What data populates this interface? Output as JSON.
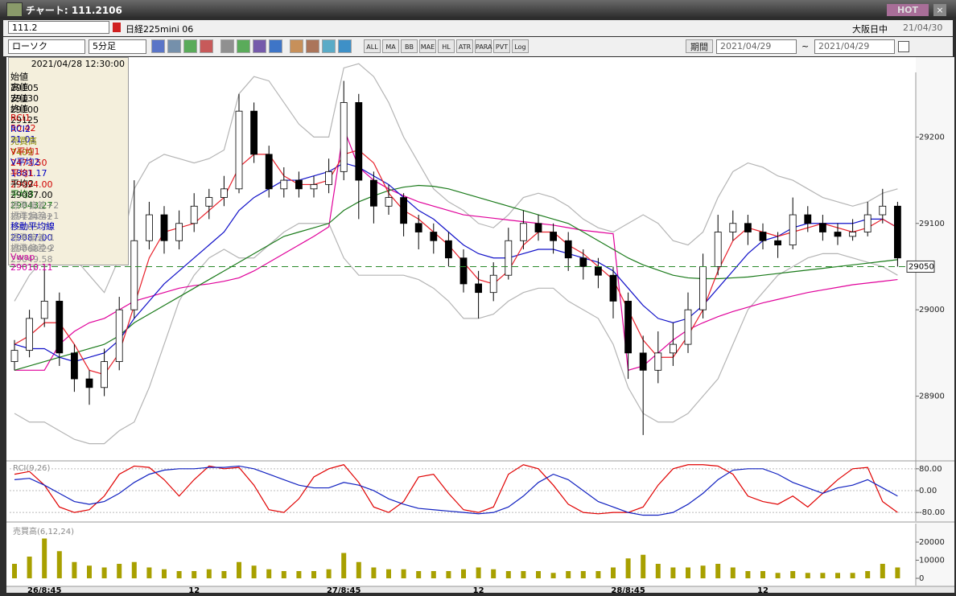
{
  "window": {
    "title": "チャート: 111.2106",
    "hot": "HOT"
  },
  "header": {
    "symbol_code": "111.2",
    "symbol_name": "日経225mini 06",
    "session": "大阪日中",
    "date": "21/04/30"
  },
  "toolbar": {
    "chart_type": "ローソク",
    "interval": "5分足",
    "buttons": [
      "ALL",
      "MA",
      "BB",
      "MAE",
      "HL",
      "ATR",
      "PARA",
      "PVT",
      "Log"
    ],
    "period_label": "期間",
    "from": "2021/04/29",
    "tilde": "~",
    "to": "2021/04/29"
  },
  "info_panel": {
    "datetime": "2021/04/28 12:30:00",
    "rows": [
      {
        "label": "始値",
        "value": "29105",
        "color": "#000000"
      },
      {
        "label": "高値",
        "value": "29130",
        "color": "#000000"
      },
      {
        "label": "安値",
        "value": "29100",
        "color": "#000000"
      },
      {
        "label": "終値",
        "value": "29125",
        "color": "#000000"
      },
      {
        "label": "RCI1",
        "value": "50.42",
        "color": "#d00000"
      },
      {
        "label": "RCI2",
        "value": "21.01",
        "color": "#0000c0"
      },
      {
        "label": "売買高",
        "value": "7409",
        "color": "#8a8a00"
      },
      {
        "label": "V平均1",
        "value": "2473.50",
        "color": "#d00000"
      },
      {
        "label": "V平均2",
        "value": "1881.17",
        "color": "#0000c0"
      },
      {
        "label": "平均1",
        "value": "29094.00",
        "color": "#d00000"
      },
      {
        "label": "平均2",
        "value": "29087.00",
        "color": "#000000"
      },
      {
        "label": "平均3",
        "value": "29043.27",
        "color": "#107010"
      },
      {
        "label": "標準偏差+2",
        "value": "29124.42",
        "color": "#909090"
      },
      {
        "label": "標準偏差+1",
        "value": "29105.71",
        "color": "#909090"
      },
      {
        "label": "移動平均線",
        "value": "29087.00",
        "color": "#0000c0"
      },
      {
        "label": "標準偏差-1",
        "value": "29068.29",
        "color": "#909090"
      },
      {
        "label": "標準偏差-2",
        "value": "29049.58",
        "color": "#909090"
      },
      {
        "label": "Vwap",
        "value": "29010.11",
        "color": "#d000a0"
      }
    ]
  },
  "chart_data": [
    {
      "type": "candlestick",
      "up_color": "#ffffff",
      "down_color": "#000000",
      "categories": [
        null,
        null,
        "26/8:45",
        null,
        null,
        null,
        null,
        null,
        null,
        null,
        null,
        null,
        "12",
        null,
        null,
        null,
        null,
        null,
        null,
        null,
        null,
        null,
        "27/8:45",
        null,
        null,
        null,
        null,
        null,
        null,
        null,
        null,
        "12",
        null,
        null,
        null,
        null,
        null,
        null,
        null,
        null,
        null,
        "28/8:45",
        null,
        null,
        null,
        null,
        null,
        null,
        null,
        null,
        "12",
        null,
        null,
        null,
        null,
        null,
        null,
        null,
        null,
        null
      ],
      "ohlc": [
        [
          28940,
          28965,
          28930,
          28953
        ],
        [
          28953,
          29000,
          28945,
          28990
        ],
        [
          28990,
          29060,
          28980,
          29010
        ],
        [
          29010,
          29020,
          28935,
          28950
        ],
        [
          28950,
          28960,
          28905,
          28920
        ],
        [
          28920,
          28930,
          28890,
          28910
        ],
        [
          28910,
          28955,
          28900,
          28940
        ],
        [
          28940,
          29015,
          28930,
          29000
        ],
        [
          29000,
          29150,
          28990,
          29080
        ],
        [
          29080,
          29125,
          29070,
          29110
        ],
        [
          29110,
          29120,
          29065,
          29080
        ],
        [
          29080,
          29115,
          29070,
          29100
        ],
        [
          29100,
          29135,
          29090,
          29120
        ],
        [
          29120,
          29140,
          29105,
          29130
        ],
        [
          29130,
          29155,
          29120,
          29140
        ],
        [
          29140,
          29250,
          29135,
          29230
        ],
        [
          29230,
          29240,
          29170,
          29180
        ],
        [
          29180,
          29190,
          29130,
          29140
        ],
        [
          29140,
          29165,
          29130,
          29150
        ],
        [
          29150,
          29160,
          29130,
          29140
        ],
        [
          29140,
          29155,
          29130,
          29145
        ],
        [
          29145,
          29175,
          29135,
          29160
        ],
        [
          29160,
          29265,
          29150,
          29240
        ],
        [
          29240,
          29250,
          29105,
          29150
        ],
        [
          29150,
          29160,
          29100,
          29120
        ],
        [
          29120,
          29145,
          29110,
          29130
        ],
        [
          29130,
          29135,
          29085,
          29100
        ],
        [
          29100,
          29110,
          29070,
          29090
        ],
        [
          29090,
          29100,
          29065,
          29080
        ],
        [
          29080,
          29090,
          29050,
          29060
        ],
        [
          29060,
          29070,
          29020,
          29030
        ],
        [
          29030,
          29045,
          28990,
          29020
        ],
        [
          29020,
          29055,
          29010,
          29040
        ],
        [
          29040,
          29095,
          29035,
          29080
        ],
        [
          29080,
          29115,
          29070,
          29100
        ],
        [
          29100,
          29110,
          29080,
          29090
        ],
        [
          29090,
          29100,
          29065,
          29080
        ],
        [
          29080,
          29090,
          29045,
          29060
        ],
        [
          29060,
          29070,
          29035,
          29050
        ],
        [
          29050,
          29060,
          29025,
          29040
        ],
        [
          29040,
          29050,
          28990,
          29010
        ],
        [
          29010,
          29020,
          28920,
          28950
        ],
        [
          28950,
          28970,
          28855,
          28930
        ],
        [
          28930,
          28975,
          28915,
          28950
        ],
        [
          28950,
          28985,
          28935,
          28960
        ],
        [
          28960,
          29020,
          28950,
          29000
        ],
        [
          29000,
          29065,
          28990,
          29050
        ],
        [
          29050,
          29110,
          29040,
          29090
        ],
        [
          29090,
          29115,
          29080,
          29100
        ],
        [
          29100,
          29110,
          29075,
          29090
        ],
        [
          29090,
          29100,
          29070,
          29080
        ],
        [
          29080,
          29090,
          29060,
          29075
        ],
        [
          29075,
          29130,
          29070,
          29110
        ],
        [
          29110,
          29120,
          29090,
          29100
        ],
        [
          29100,
          29110,
          29080,
          29090
        ],
        [
          29090,
          29100,
          29075,
          29085
        ],
        [
          29085,
          29105,
          29080,
          29090
        ],
        [
          29090,
          29125,
          29085,
          29110
        ],
        [
          29110,
          29140,
          29100,
          29120
        ],
        [
          29120,
          29125,
          29050,
          29060
        ]
      ],
      "series": [
        {
          "color": "#b4b4b4",
          "values": [
            29010,
            29040,
            29060,
            29070,
            29060,
            29040,
            29020,
            29060,
            29140,
            29170,
            29180,
            29175,
            29170,
            29175,
            29185,
            29250,
            29270,
            29265,
            29240,
            29215,
            29200,
            29200,
            29280,
            29285,
            29270,
            29240,
            29200,
            29170,
            29140,
            29125,
            29115,
            29100,
            29095,
            29110,
            29130,
            29135,
            29130,
            29120,
            29105,
            29095,
            29090,
            29100,
            29110,
            29100,
            29080,
            29075,
            29090,
            29130,
            29160,
            29170,
            29165,
            29155,
            29150,
            29140,
            29130,
            29125,
            29120,
            29125,
            29135,
            29140
          ]
        },
        {
          "color": "#b4b4b4",
          "values": [
            28880,
            28870,
            28870,
            28860,
            28850,
            28845,
            28845,
            28860,
            28870,
            28910,
            28960,
            29010,
            29040,
            29060,
            29070,
            29060,
            29060,
            29075,
            29090,
            29100,
            29100,
            29100,
            29060,
            29040,
            29040,
            29040,
            29040,
            29035,
            29025,
            29010,
            28990,
            28990,
            28995,
            29010,
            29020,
            29025,
            29025,
            29010,
            29000,
            28990,
            28960,
            28910,
            28880,
            28870,
            28870,
            28880,
            28900,
            28920,
            28960,
            29000,
            29020,
            29040,
            29050,
            29060,
            29065,
            29065,
            29060,
            29055,
            29050,
            29040
          ]
        },
        {
          "color": "#e0009a",
          "values": [
            28930,
            28930,
            28930,
            28960,
            28975,
            28985,
            28990,
            29000,
            29010,
            29015,
            29020,
            29025,
            29028,
            29030,
            29033,
            29037,
            29045,
            29055,
            29065,
            29075,
            29085,
            29096,
            29210,
            29165,
            29150,
            29140,
            29132,
            29125,
            29120,
            29115,
            29110,
            29108,
            29106,
            29104,
            29102,
            29100,
            29098,
            29095,
            29092,
            29090,
            29088,
            28930,
            28935,
            28950,
            28965,
            28977,
            28985,
            28992,
            28998,
            29003,
            29008,
            29012,
            29016,
            29020,
            29023,
            29026,
            29029,
            29031,
            29033,
            29035
          ]
        },
        {
          "color": "#1a7a1a",
          "values": [
            28930,
            28935,
            28940,
            28945,
            28950,
            28955,
            28960,
            28970,
            28985,
            28995,
            29005,
            29015,
            29025,
            29035,
            29045,
            29055,
            29065,
            29075,
            29085,
            29090,
            29095,
            29100,
            29115,
            29125,
            29132,
            29138,
            29142,
            29144,
            29143,
            29140,
            29135,
            29130,
            29125,
            29120,
            29115,
            29110,
            29105,
            29100,
            29090,
            29080,
            29070,
            29060,
            29052,
            29046,
            29040,
            29037,
            29036,
            29036,
            29037,
            29038,
            29040,
            29042,
            29044,
            29046,
            29048,
            29050,
            29052,
            29054,
            29056,
            29058
          ]
        },
        {
          "color": "#1010c8",
          "values": [
            28960,
            28955,
            28955,
            28945,
            28940,
            28945,
            28950,
            28965,
            28990,
            29010,
            29030,
            29045,
            29060,
            29075,
            29090,
            29115,
            29130,
            29140,
            29150,
            29150,
            29155,
            29160,
            29170,
            29165,
            29155,
            29145,
            29130,
            29115,
            29105,
            29090,
            29075,
            29065,
            29060,
            29060,
            29065,
            29070,
            29070,
            29065,
            29060,
            29055,
            29045,
            29025,
            29005,
            28990,
            28985,
            28990,
            29005,
            29025,
            29045,
            29065,
            29080,
            29085,
            29095,
            29100,
            29100,
            29100,
            29100,
            29105,
            29105,
            29095
          ]
        },
        {
          "color": "#e8202a",
          "values": [
            28960,
            28970,
            28985,
            28985,
            28960,
            28930,
            28925,
            28950,
            29005,
            29060,
            29090,
            29095,
            29100,
            29115,
            29130,
            29165,
            29180,
            29180,
            29155,
            29145,
            29145,
            29150,
            29180,
            29185,
            29170,
            29135,
            29115,
            29105,
            29090,
            29075,
            29055,
            29035,
            29030,
            29045,
            29075,
            29090,
            29090,
            29075,
            29065,
            29050,
            29035,
            29000,
            28965,
            28945,
            28945,
            28970,
            29000,
            29045,
            29080,
            29095,
            29090,
            29085,
            29090,
            29095,
            29100,
            29095,
            29090,
            29095,
            29105,
            29095
          ]
        }
      ],
      "last_price": 29050,
      "ylim": [
        28826,
        29273
      ],
      "yticks": [
        28900,
        29000,
        29100,
        29200
      ],
      "grid": false
    },
    {
      "type": "line",
      "title": "RCI(9,26)",
      "series": [
        {
          "color": "#e00000",
          "values": [
            60,
            70,
            20,
            -60,
            -80,
            -70,
            -20,
            60,
            90,
            85,
            40,
            -20,
            40,
            90,
            80,
            85,
            20,
            -70,
            -80,
            -30,
            50,
            80,
            95,
            30,
            -60,
            -80,
            -40,
            50,
            60,
            -10,
            -70,
            -80,
            -60,
            60,
            95,
            80,
            20,
            -50,
            -80,
            -85,
            -80,
            -80,
            -60,
            20,
            80,
            95,
            95,
            90,
            60,
            -20,
            -40,
            -50,
            -20,
            -60,
            -10,
            40,
            80,
            85,
            -40,
            -80
          ]
        },
        {
          "color": "#1020c0",
          "values": [
            40,
            45,
            20,
            -10,
            -40,
            -50,
            -40,
            -10,
            30,
            60,
            75,
            80,
            80,
            85,
            85,
            90,
            80,
            60,
            40,
            20,
            10,
            10,
            30,
            20,
            0,
            -30,
            -50,
            -65,
            -70,
            -75,
            -80,
            -85,
            -80,
            -60,
            -20,
            30,
            60,
            40,
            0,
            -40,
            -60,
            -80,
            -90,
            -90,
            -80,
            -50,
            -10,
            40,
            75,
            80,
            80,
            60,
            30,
            10,
            -10,
            10,
            20,
            40,
            10,
            -20
          ]
        }
      ],
      "ylim": [
        -112,
        106
      ],
      "yticks": [
        {
          "value": 80,
          "label": "80.00"
        },
        {
          "value": 0,
          "label": "0.00"
        },
        {
          "value": -80,
          "label": "-80.00"
        }
      ],
      "grid": true
    },
    {
      "type": "bar",
      "title": "売買高(6,12,24)",
      "color": "#a8a000",
      "values": [
        8000,
        12000,
        22000,
        15000,
        9000,
        7000,
        6000,
        8000,
        9000,
        6000,
        5000,
        4000,
        4000,
        5000,
        4000,
        9000,
        7000,
        5000,
        4000,
        4000,
        4000,
        5000,
        14000,
        9000,
        6000,
        5000,
        5000,
        4000,
        4000,
        4000,
        5000,
        6000,
        5000,
        4000,
        4000,
        4000,
        3000,
        4000,
        4000,
        4000,
        6000,
        11000,
        13000,
        8000,
        6000,
        6000,
        7000,
        8000,
        6000,
        4000,
        4000,
        3000,
        4000,
        3000,
        3000,
        3000,
        3000,
        4000,
        8000,
        6000
      ],
      "ylim": [
        -4000,
        29333
      ],
      "yticks": [
        0,
        10000,
        20000
      ],
      "grid": false
    }
  ]
}
